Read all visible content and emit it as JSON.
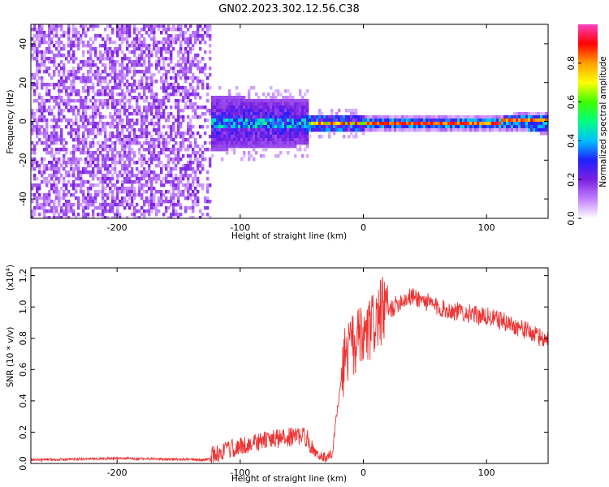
{
  "title": "GN02.2023.302.12.56.C38",
  "chart_data": [
    {
      "type": "heatmap",
      "xlabel": "Height of straight line (km)",
      "ylabel": "Frequency (Hz)",
      "xlim": [
        -270,
        150
      ],
      "ylim": [
        -50,
        50
      ],
      "x_ticks": [
        -200,
        -100,
        0,
        100
      ],
      "y_ticks": [
        -40,
        -20,
        0,
        20,
        40
      ],
      "colorbar": {
        "label": "Normalized spectral amplitude",
        "range": [
          0,
          1
        ],
        "ticks": [
          "0.0",
          "0.2",
          "0.4",
          "0.6",
          "0.8"
        ],
        "colors": [
          "#ffffff",
          "#c080ff",
          "#7a20e0",
          "#2020ff",
          "#00c0ff",
          "#00ff80",
          "#40ff00",
          "#ffff00",
          "#ffa000",
          "#ff0000",
          "#ff40c0"
        ]
      },
      "regions": [
        {
          "x_range": [
            -270,
            -122
          ],
          "freq_range": [
            -50,
            50
          ],
          "amplitude": "0.0-0.1 scattered noise"
        },
        {
          "x_range": [
            -132,
            -45
          ],
          "freq_range": [
            -15,
            12
          ],
          "amplitude": "0.1-0.4"
        },
        {
          "x_range": [
            -45,
            0
          ],
          "freq_range": [
            -4,
            4
          ],
          "amplitude": "0.2-0.8"
        },
        {
          "x_range": [
            0,
            150
          ],
          "freq_range": [
            -2,
            2
          ],
          "amplitude": "0.6-0.95"
        }
      ]
    },
    {
      "type": "line",
      "xlabel": "Height of straight line (km)",
      "ylabel": "SNR (10 * v/v)",
      "y_multiplier": "(x10",
      "y_multiplier_exp": "4",
      "y_multiplier_close": ")",
      "xlim": [
        -270,
        150
      ],
      "ylim": [
        0,
        1.25
      ],
      "x_ticks": [
        -200,
        -100,
        0,
        100
      ],
      "y_ticks": [
        "0.0",
        "0.2",
        "0.4",
        "0.6",
        "0.8",
        "1.0",
        "1.2"
      ],
      "color": "#ee3333",
      "series": [
        {
          "x": [
            -270,
            -240,
            -200,
            -160,
            -130,
            -120,
            -110,
            -100,
            -90,
            -80,
            -70,
            -60,
            -50,
            -45,
            -40,
            -35,
            -30,
            -25,
            -22,
            -18,
            -15,
            -10,
            -5,
            0,
            5,
            10,
            20,
            30,
            40,
            50,
            60,
            70,
            80,
            90,
            100,
            110,
            120,
            130,
            140,
            150
          ],
          "y": [
            0.02,
            0.025,
            0.03,
            0.025,
            0.02,
            0.04,
            0.07,
            0.09,
            0.11,
            0.13,
            0.14,
            0.15,
            0.16,
            0.14,
            0.06,
            0.04,
            0.03,
            0.06,
            0.3,
            0.5,
            0.62,
            0.68,
            0.7,
            0.72,
            0.78,
            0.85,
            0.95,
            1.02,
            1.05,
            1.02,
            0.98,
            0.96,
            0.95,
            0.93,
            0.92,
            0.9,
            0.87,
            0.84,
            0.8,
            0.77
          ]
        }
      ]
    }
  ]
}
